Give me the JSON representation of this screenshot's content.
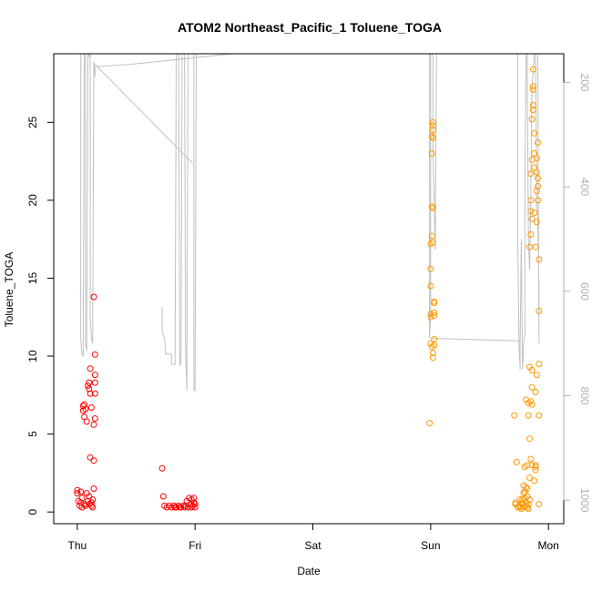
{
  "chart_data": {
    "type": "scatter",
    "title": "ATOM2 Northeast_Pacific_1 Toluene_TOGA",
    "xlabel": "Date",
    "ylabel": "Toluene_TOGA",
    "x_tick_labels": [
      "Thu",
      "Fri",
      "Sat",
      "Sun",
      "Mon"
    ],
    "y_ticks": [
      0,
      5,
      10,
      15,
      20,
      25
    ],
    "y_right_ticks": [
      200,
      400,
      600,
      800,
      1000
    ],
    "xlim": [
      -0.2,
      4.13
    ],
    "ylim": [
      -0.75,
      29.4
    ],
    "y_right_lim": [
      1045,
      145
    ],
    "grid": false,
    "colors": {
      "thu": "#ff0000",
      "fri": "#ff0000",
      "sun": "#ff9900",
      "mon": "#ff9900",
      "altitude": "#c0c0c0",
      "axis": "#000000"
    },
    "series": [
      {
        "color": "#ff0000",
        "points": [
          [
            0.0,
            1.4
          ],
          [
            0.0,
            1.2
          ],
          [
            0.01,
            0.7
          ],
          [
            0.02,
            0.4
          ],
          [
            0.03,
            1.3
          ],
          [
            0.03,
            0.6
          ],
          [
            0.04,
            0.3
          ],
          [
            0.05,
            6.8
          ],
          [
            0.05,
            6.5
          ],
          [
            0.06,
            6.1
          ],
          [
            0.06,
            0.5
          ],
          [
            0.07,
            6.6
          ],
          [
            0.07,
            0.4
          ],
          [
            0.08,
            5.8
          ],
          [
            0.08,
            1.2
          ],
          [
            0.09,
            8.1
          ],
          [
            0.09,
            0.7
          ],
          [
            0.1,
            8.3
          ],
          [
            0.1,
            7.9
          ],
          [
            0.1,
            0.5
          ],
          [
            0.11,
            9.2
          ],
          [
            0.11,
            7.6
          ],
          [
            0.11,
            3.5
          ],
          [
            0.12,
            6.7
          ],
          [
            0.12,
            0.6
          ],
          [
            0.13,
            0.3
          ],
          [
            0.13,
            0.8
          ],
          [
            0.14,
            1.5
          ],
          [
            0.14,
            3.3
          ],
          [
            0.14,
            5.6
          ],
          [
            0.15,
            6.0
          ],
          [
            0.15,
            7.6
          ],
          [
            0.15,
            8.3
          ],
          [
            0.15,
            8.8
          ],
          [
            0.15,
            10.1
          ],
          [
            0.14,
            13.8
          ],
          [
            0.12,
            0.4
          ],
          [
            0.06,
            6.9
          ],
          [
            0.1,
            1.0
          ],
          [
            0.04,
            0.9
          ]
        ]
      },
      {
        "color": "#ff0000",
        "points": [
          [
            0.72,
            2.8
          ],
          [
            0.73,
            1.0
          ],
          [
            0.74,
            0.4
          ],
          [
            0.76,
            0.3
          ],
          [
            0.78,
            0.4
          ],
          [
            0.8,
            0.3
          ],
          [
            0.82,
            0.4
          ],
          [
            0.84,
            0.3
          ],
          [
            0.86,
            0.4
          ],
          [
            0.88,
            0.3
          ],
          [
            0.9,
            0.4
          ],
          [
            0.92,
            0.4
          ],
          [
            0.93,
            0.7
          ],
          [
            0.94,
            0.3
          ],
          [
            0.95,
            0.9
          ],
          [
            0.96,
            0.5
          ],
          [
            0.97,
            0.3
          ],
          [
            0.97,
            0.8
          ],
          [
            0.98,
            0.4
          ],
          [
            0.99,
            0.6
          ],
          [
            0.99,
            0.9
          ],
          [
            1.0,
            0.3
          ],
          [
            1.0,
            0.5
          ],
          [
            0.91,
            0.3
          ],
          [
            0.87,
            0.3
          ],
          [
            0.83,
            0.3
          ]
        ]
      },
      {
        "color": "#ff9900",
        "points": [
          [
            2.99,
            5.7
          ],
          [
            3.0,
            10.8
          ],
          [
            3.0,
            12.7
          ],
          [
            3.0,
            14.5
          ],
          [
            3.0,
            15.6
          ],
          [
            3.0,
            17.2
          ],
          [
            3.01,
            17.7
          ],
          [
            3.01,
            19.6
          ],
          [
            3.01,
            23.0
          ],
          [
            3.01,
            24.1
          ],
          [
            3.02,
            24.5
          ],
          [
            3.02,
            24.8
          ],
          [
            3.02,
            25.0
          ],
          [
            3.02,
            24.0
          ],
          [
            3.02,
            19.5
          ],
          [
            3.02,
            17.3
          ],
          [
            3.03,
            13.5
          ],
          [
            3.03,
            12.8
          ],
          [
            3.03,
            12.6
          ],
          [
            3.03,
            11.1
          ],
          [
            3.03,
            10.7
          ],
          [
            3.02,
            10.2
          ],
          [
            3.02,
            9.9
          ],
          [
            3.01,
            10.6
          ],
          [
            3.03,
            13.4
          ],
          [
            3.0,
            12.5
          ]
        ]
      },
      {
        "color": "#ff9900",
        "points": [
          [
            3.71,
            6.2
          ],
          [
            3.72,
            0.5
          ],
          [
            3.72,
            0.6
          ],
          [
            3.73,
            3.2
          ],
          [
            3.74,
            0.3
          ],
          [
            3.75,
            0.4
          ],
          [
            3.76,
            0.3
          ],
          [
            3.77,
            0.2
          ],
          [
            3.78,
            0.5
          ],
          [
            3.78,
            0.8
          ],
          [
            3.79,
            1.2
          ],
          [
            3.79,
            1.7
          ],
          [
            3.8,
            0.9
          ],
          [
            3.8,
            1.3
          ],
          [
            3.8,
            2.9
          ],
          [
            3.81,
            0.4
          ],
          [
            3.81,
            0.6
          ],
          [
            3.81,
            1.6
          ],
          [
            3.81,
            7.2
          ],
          [
            3.82,
            0.3
          ],
          [
            3.82,
            1.0
          ],
          [
            3.82,
            1.5
          ],
          [
            3.82,
            3.0
          ],
          [
            3.83,
            6.2
          ],
          [
            3.83,
            7.0
          ],
          [
            3.83,
            0.5
          ],
          [
            3.84,
            0.8
          ],
          [
            3.84,
            2.2
          ],
          [
            3.84,
            4.7
          ],
          [
            3.84,
            9.3
          ],
          [
            3.84,
            17.0
          ],
          [
            3.85,
            17.8
          ],
          [
            3.85,
            19.3
          ],
          [
            3.85,
            20.0
          ],
          [
            3.85,
            21.7
          ],
          [
            3.85,
            7.1
          ],
          [
            3.85,
            3.4
          ],
          [
            3.86,
            6.9
          ],
          [
            3.86,
            8.0
          ],
          [
            3.86,
            9.1
          ],
          [
            3.86,
            18.8
          ],
          [
            3.86,
            22.6
          ],
          [
            3.86,
            25.2
          ],
          [
            3.87,
            26.1
          ],
          [
            3.87,
            27.1
          ],
          [
            3.87,
            28.4
          ],
          [
            3.87,
            27.3
          ],
          [
            3.87,
            25.8
          ],
          [
            3.88,
            24.3
          ],
          [
            3.88,
            23.0
          ],
          [
            3.88,
            22.1
          ],
          [
            3.88,
            19.2
          ],
          [
            3.89,
            17.0
          ],
          [
            3.89,
            7.7
          ],
          [
            3.89,
            2.7
          ],
          [
            3.89,
            2.9
          ],
          [
            3.89,
            3.0
          ],
          [
            3.9,
            8.8
          ],
          [
            3.9,
            18.6
          ],
          [
            3.9,
            20.6
          ],
          [
            3.9,
            21.8
          ],
          [
            3.9,
            22.7
          ],
          [
            3.91,
            20.9
          ],
          [
            3.91,
            21.4
          ],
          [
            3.91,
            23.7
          ],
          [
            3.91,
            20.0
          ],
          [
            3.92,
            16.2
          ],
          [
            3.92,
            12.9
          ],
          [
            3.92,
            9.5
          ],
          [
            3.92,
            6.2
          ],
          [
            3.92,
            0.5
          ],
          [
            3.79,
            0.3
          ],
          [
            3.77,
            0.6
          ],
          [
            3.83,
            0.2
          ],
          [
            3.76,
            0.8
          ],
          [
            3.88,
            2.0
          ],
          [
            3.86,
            3.0
          ]
        ]
      }
    ],
    "altitude_segments": [
      [
        [
          -0.03,
          145
        ],
        [
          0.03,
          145
        ],
        [
          0.03,
          690
        ],
        [
          0.04,
          720
        ],
        [
          0.05,
          725
        ],
        [
          0.06,
          145
        ],
        [
          0.07,
          145
        ],
        [
          0.07,
          700
        ],
        [
          0.08,
          715
        ],
        [
          0.09,
          145
        ],
        [
          0.1,
          150
        ],
        [
          0.11,
          145
        ],
        [
          0.11,
          650
        ],
        [
          0.12,
          690
        ],
        [
          0.13,
          700
        ],
        [
          0.14,
          160
        ],
        [
          0.15,
          190
        ],
        [
          0.15,
          170
        ],
        [
          0.46,
          165
        ],
        [
          1.32,
          145
        ],
        [
          2.98,
          145
        ],
        [
          2.99,
          145
        ],
        [
          2.99,
          400
        ],
        [
          2.99,
          690
        ],
        [
          3.0,
          640
        ],
        [
          3.0,
          145
        ],
        [
          3.01,
          145
        ],
        [
          3.02,
          150
        ],
        [
          3.02,
          330
        ],
        [
          3.03,
          430
        ],
        [
          3.04,
          520
        ],
        [
          3.04,
          480
        ],
        [
          3.05,
          145
        ]
      ],
      [
        [
          0.15,
          165
        ],
        [
          0.98,
          355
        ]
      ],
      [
        [
          0.72,
          630
        ],
        [
          0.72,
          675
        ],
        [
          0.74,
          690
        ],
        [
          0.75,
          720
        ],
        [
          0.8,
          720
        ],
        [
          0.8,
          740
        ],
        [
          0.83,
          740
        ],
        [
          0.84,
          145
        ],
        [
          0.86,
          145
        ],
        [
          0.87,
          740
        ],
        [
          0.88,
          740
        ],
        [
          0.89,
          145
        ],
        [
          0.91,
          145
        ],
        [
          0.92,
          720
        ],
        [
          0.93,
          790
        ],
        [
          0.94,
          145
        ],
        [
          0.98,
          145
        ],
        [
          0.99,
          145
        ],
        [
          0.99,
          790
        ],
        [
          1.0,
          790
        ],
        [
          1.01,
          145
        ]
      ],
      [
        [
          3.01,
          690
        ],
        [
          3.76,
          695
        ]
      ],
      [
        [
          3.73,
          145
        ],
        [
          3.74,
          145
        ],
        [
          3.74,
          520
        ],
        [
          3.75,
          700
        ],
        [
          3.76,
          750
        ],
        [
          3.76,
          700
        ],
        [
          3.77,
          500
        ],
        [
          3.78,
          750
        ],
        [
          3.79,
          700
        ],
        [
          3.8,
          680
        ],
        [
          3.8,
          400
        ],
        [
          3.81,
          145
        ],
        [
          3.82,
          145
        ],
        [
          3.82,
          180
        ],
        [
          3.83,
          500
        ],
        [
          3.84,
          560
        ],
        [
          3.85,
          420
        ],
        [
          3.86,
          210
        ],
        [
          3.87,
          180
        ],
        [
          3.88,
          145
        ],
        [
          3.89,
          145
        ],
        [
          3.9,
          430
        ],
        [
          3.91,
          460
        ],
        [
          3.92,
          600
        ],
        [
          3.92,
          700
        ],
        [
          3.91,
          145
        ],
        [
          3.93,
          145
        ]
      ]
    ]
  }
}
